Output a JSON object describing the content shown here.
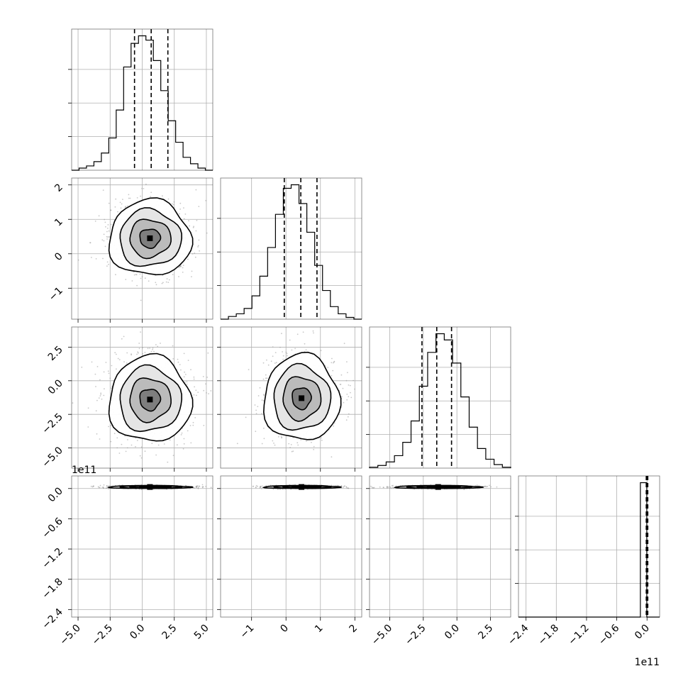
{
  "chart_data": {
    "type": "corner",
    "parameters": [
      {
        "ticks": [
          -5.0,
          -2.5,
          0.0,
          2.5,
          5.0
        ],
        "tick_labels": [
          "−5.0",
          "−2.5",
          "0.0",
          "2.5",
          "5.0"
        ],
        "range": [
          -5.5,
          5.5
        ],
        "quantiles": [
          -0.6,
          0.7,
          2.0
        ],
        "hist_y": [
          0,
          2,
          4,
          8,
          16,
          30,
          56,
          96,
          118,
          125,
          121,
          102,
          74,
          46,
          26,
          12,
          6,
          2,
          0
        ]
      },
      {
        "ticks": [
          -1,
          0,
          1,
          2
        ],
        "tick_labels": [
          "−1",
          "0",
          "1",
          "2"
        ],
        "range": [
          -1.9,
          2.2
        ],
        "quantiles": [
          -0.05,
          0.43,
          0.9
        ],
        "hist_y": [
          0,
          3,
          6,
          12,
          26,
          48,
          80,
          117,
          146,
          150,
          129,
          97,
          60,
          32,
          14,
          6,
          2,
          0
        ]
      },
      {
        "ticks": [
          -5.0,
          -2.5,
          0.0,
          2.5
        ],
        "tick_labels": [
          "−5.0",
          "−2.5",
          "0.0",
          "2.5"
        ],
        "range": [
          -6.5,
          4.0
        ],
        "quantiles": [
          -2.6,
          -1.5,
          -0.4
        ],
        "hist_y": [
          1,
          3,
          7,
          14,
          29,
          53,
          92,
          130,
          151,
          144,
          118,
          80,
          46,
          22,
          10,
          4,
          1
        ]
      },
      {
        "ticks": [
          -2.4,
          -1.8,
          -1.2,
          -0.6,
          0.0
        ],
        "tick_labels": [
          "−2.4",
          "−1.8",
          "−1.2",
          "−0.6",
          "0.0"
        ],
        "range": [
          -2.55,
          0.25
        ],
        "quantiles": [
          -0.015,
          0.0,
          0.015
        ],
        "hist_y": [
          0,
          0,
          0,
          0,
          0,
          0,
          0,
          0,
          0,
          0,
          0,
          0,
          0,
          0,
          0,
          0,
          0,
          0,
          0,
          1,
          0,
          0
        ]
      }
    ],
    "pair_2d": [
      {
        "row": 1,
        "col": 0,
        "center": [
          0.6,
          0.45
        ],
        "sigma": [
          1.6,
          0.55
        ]
      },
      {
        "row": 2,
        "col": 0,
        "center": [
          0.6,
          -1.4
        ],
        "sigma": [
          1.6,
          1.6
        ]
      },
      {
        "row": 2,
        "col": 1,
        "center": [
          0.45,
          -1.3
        ],
        "sigma": [
          0.55,
          1.6
        ]
      },
      {
        "row": 3,
        "col": 0,
        "center": [
          0.6,
          0.03
        ],
        "sigma": [
          1.6,
          0.015
        ]
      },
      {
        "row": 3,
        "col": 1,
        "center": [
          0.45,
          0.03
        ],
        "sigma": [
          0.55,
          0.015
        ]
      },
      {
        "row": 3,
        "col": 2,
        "center": [
          -1.4,
          0.03
        ],
        "sigma": [
          1.6,
          0.015
        ]
      }
    ],
    "offset_labels": {
      "y_axis_row4": "1e11",
      "x_axis_col4": "1e11"
    },
    "grid": true,
    "colors": {
      "hist_line": "#000000",
      "density": "#000000",
      "points": "#9a9a9a",
      "grid": "#b0b0b0"
    }
  }
}
